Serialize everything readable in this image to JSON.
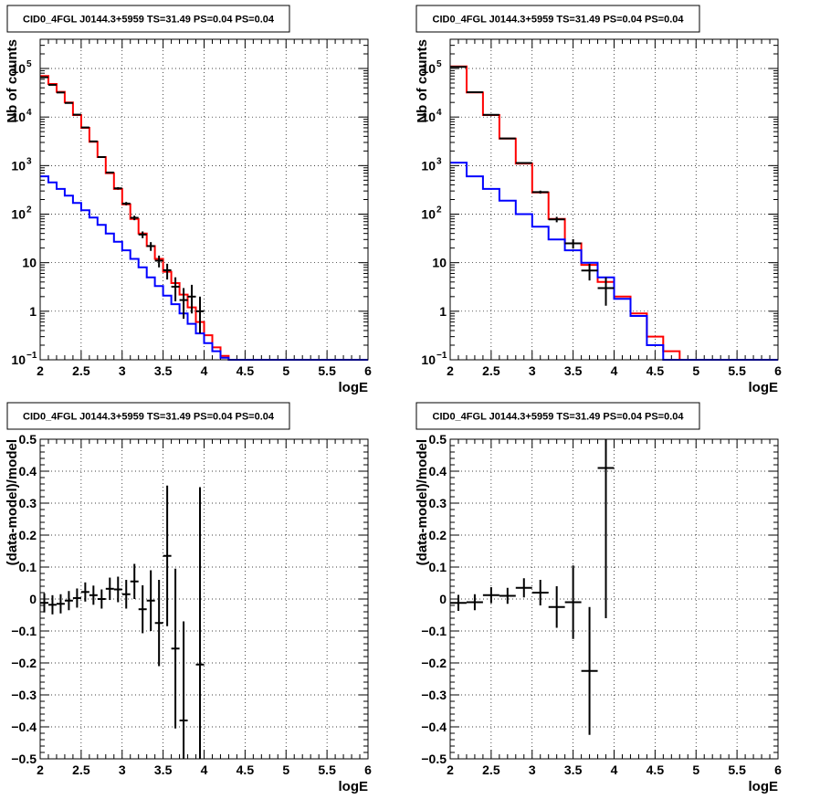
{
  "colors": {
    "data": "#000000",
    "model_total": "#ff0000",
    "model_component": "#0000ff",
    "grid": "#000000"
  },
  "chart_data": [
    {
      "type": "line",
      "title": "CID0_4FGL J0144.3+5959 TS=31.49 PS=0.04 PS=0.04",
      "xlabel": "logE",
      "ylabel": "Nb of counts",
      "xlim": [
        2,
        6
      ],
      "ylim": [
        0.1,
        400000
      ],
      "yscale": "log",
      "grid": true,
      "x_ticks": [
        "2",
        "2.5",
        "3",
        "3.5",
        "4",
        "4.5",
        "5",
        "5.5",
        "6"
      ],
      "y_ticks": [
        {
          "value": 0.1,
          "base": "10",
          "exp": "−1"
        },
        {
          "value": 1,
          "base": "1",
          "exp": ""
        },
        {
          "value": 10,
          "base": "10",
          "exp": ""
        },
        {
          "value": 100,
          "base": "10",
          "exp": "2"
        },
        {
          "value": 1000,
          "base": "10",
          "exp": "3"
        },
        {
          "value": 10000,
          "base": "10",
          "exp": "4"
        },
        {
          "value": 100000,
          "base": "10",
          "exp": "5"
        }
      ],
      "bin_edges": [
        2.0,
        2.1,
        2.2,
        2.3,
        2.4,
        2.5,
        2.6,
        2.7,
        2.8,
        2.9,
        3.0,
        3.1,
        3.2,
        3.3,
        3.4,
        3.5,
        3.6,
        3.7,
        3.8,
        3.9,
        4.0,
        4.1,
        4.2,
        4.3,
        4.4,
        4.5,
        4.6,
        4.7,
        4.8,
        4.9,
        5.0,
        5.1,
        5.2,
        5.3,
        5.4,
        5.5,
        5.6,
        5.7,
        5.8,
        5.9,
        6.0
      ],
      "series": [
        {
          "role": "model_total",
          "style": "step",
          "values": [
            70000,
            48000,
            33000,
            20000,
            11000,
            6000,
            3100,
            1500,
            700,
            330,
            160,
            80,
            40,
            22,
            12,
            6.5,
            3.8,
            2.2,
            1.2,
            0.6,
            0.32,
            0.18,
            0.12,
            0.1,
            0.1,
            0.1,
            0.1,
            0.1,
            0.1,
            0.1,
            0.1,
            0.1,
            0.1,
            0.1,
            0.1,
            0.1,
            0.1,
            0.1,
            0.1,
            0.1
          ]
        },
        {
          "role": "model_component",
          "style": "step",
          "values": [
            600,
            450,
            330,
            240,
            170,
            120,
            85,
            60,
            40,
            27,
            18,
            12,
            8,
            5,
            3.3,
            2.1,
            1.4,
            0.9,
            0.55,
            0.35,
            0.22,
            0.15,
            0.11,
            0.1,
            0.1,
            0.1,
            0.1,
            0.1,
            0.1,
            0.1,
            0.1,
            0.1,
            0.1,
            0.1,
            0.1,
            0.1,
            0.1,
            0.1,
            0.1,
            0.1
          ]
        },
        {
          "role": "data",
          "style": "points",
          "points": [
            {
              "x": 2.05,
              "y": 66000,
              "lo": 65500,
              "hi": 66500
            },
            {
              "x": 2.15,
              "y": 46000,
              "lo": 45500,
              "hi": 46500
            },
            {
              "x": 2.25,
              "y": 32000,
              "lo": 31600,
              "hi": 32400
            },
            {
              "x": 2.35,
              "y": 19500,
              "lo": 19200,
              "hi": 19800
            },
            {
              "x": 2.45,
              "y": 11200,
              "lo": 11000,
              "hi": 11400
            },
            {
              "x": 2.55,
              "y": 6100,
              "lo": 6000,
              "hi": 6200
            },
            {
              "x": 2.65,
              "y": 3150,
              "lo": 3090,
              "hi": 3210
            },
            {
              "x": 2.75,
              "y": 1500,
              "lo": 1460,
              "hi": 1540
            },
            {
              "x": 2.85,
              "y": 720,
              "lo": 690,
              "hi": 750
            },
            {
              "x": 2.95,
              "y": 340,
              "lo": 320,
              "hi": 360
            },
            {
              "x": 3.05,
              "y": 165,
              "lo": 152,
              "hi": 178
            },
            {
              "x": 3.15,
              "y": 84,
              "lo": 75,
              "hi": 93
            },
            {
              "x": 3.25,
              "y": 38,
              "lo": 32,
              "hi": 44
            },
            {
              "x": 3.35,
              "y": 22,
              "lo": 17.5,
              "hi": 26.5
            },
            {
              "x": 3.45,
              "y": 11,
              "lo": 8,
              "hi": 14
            },
            {
              "x": 3.55,
              "y": 7,
              "lo": 4.5,
              "hi": 9.5
            },
            {
              "x": 3.65,
              "y": 3.2,
              "lo": 1.6,
              "hi": 5
            },
            {
              "x": 3.75,
              "y": 1.7,
              "lo": 0.7,
              "hi": 3
            },
            {
              "x": 3.85,
              "y": 2,
              "lo": 0.9,
              "hi": 3.5
            },
            {
              "x": 3.95,
              "y": 1,
              "lo": 0.35,
              "hi": 2
            }
          ]
        }
      ]
    },
    {
      "type": "line",
      "title": "CID0_4FGL J0144.3+5959 TS=31.49 PS=0.04 PS=0.04",
      "xlabel": "logE",
      "ylabel": "Nb of counts",
      "xlim": [
        2,
        6
      ],
      "ylim": [
        0.1,
        400000
      ],
      "yscale": "log",
      "grid": true,
      "x_ticks": [
        "2",
        "2.5",
        "3",
        "3.5",
        "4",
        "4.5",
        "5",
        "5.5",
        "6"
      ],
      "y_ticks": [
        {
          "value": 0.1,
          "base": "10",
          "exp": "−1"
        },
        {
          "value": 1,
          "base": "1",
          "exp": ""
        },
        {
          "value": 10,
          "base": "10",
          "exp": ""
        },
        {
          "value": 100,
          "base": "10",
          "exp": "2"
        },
        {
          "value": 1000,
          "base": "10",
          "exp": "3"
        },
        {
          "value": 10000,
          "base": "10",
          "exp": "4"
        },
        {
          "value": 100000,
          "base": "10",
          "exp": "5"
        }
      ],
      "bin_edges": [
        2.0,
        2.2,
        2.4,
        2.6,
        2.8,
        3.0,
        3.2,
        3.4,
        3.6,
        3.8,
        4.0,
        4.2,
        4.4,
        4.6,
        4.8,
        5.0,
        5.2,
        5.4,
        5.6,
        5.8,
        6.0
      ],
      "series": [
        {
          "role": "model_total",
          "style": "step",
          "values": [
            110000,
            32000,
            11000,
            3600,
            1100,
            280,
            80,
            25,
            9,
            4,
            2,
            0.9,
            0.3,
            0.15,
            0.1,
            0.1,
            0.1,
            0.1,
            0.1,
            0.1
          ]
        },
        {
          "role": "model_component",
          "style": "step",
          "values": [
            1150,
            600,
            330,
            190,
            100,
            55,
            30,
            18,
            10,
            5,
            1.8,
            0.8,
            0.2,
            0.1,
            0.1,
            0.1,
            0.1,
            0.1,
            0.1,
            0.1
          ]
        },
        {
          "role": "data",
          "style": "points",
          "points": [
            {
              "x": 2.1,
              "y": 108000,
              "lo": 107000,
              "hi": 109000
            },
            {
              "x": 2.3,
              "y": 32500,
              "lo": 32100,
              "hi": 32900
            },
            {
              "x": 2.5,
              "y": 11100,
              "lo": 10900,
              "hi": 11300
            },
            {
              "x": 2.7,
              "y": 3620,
              "lo": 3550,
              "hi": 3690
            },
            {
              "x": 2.9,
              "y": 1130,
              "lo": 1090,
              "hi": 1170
            },
            {
              "x": 3.1,
              "y": 285,
              "lo": 265,
              "hi": 305
            },
            {
              "x": 3.3,
              "y": 78,
              "lo": 68,
              "hi": 88
            },
            {
              "x": 3.5,
              "y": 25,
              "lo": 19.5,
              "hi": 30.5
            },
            {
              "x": 3.7,
              "y": 6.9,
              "lo": 4.3,
              "hi": 9.5
            },
            {
              "x": 3.9,
              "y": 3,
              "lo": 1.3,
              "hi": 5
            }
          ]
        }
      ]
    },
    {
      "type": "scatter",
      "title": "CID0_4FGL J0144.3+5959 TS=31.49 PS=0.04 PS=0.04",
      "xlabel": "logE",
      "ylabel": "(data-model)/model",
      "xlim": [
        2,
        6
      ],
      "ylim": [
        -0.5,
        0.5
      ],
      "grid": true,
      "x_ticks": [
        "2",
        "2.5",
        "3",
        "3.5",
        "4",
        "4.5",
        "5",
        "5.5",
        "6"
      ],
      "y_ticks": [
        "−0.5",
        "−0.4",
        "−0.3",
        "−0.2",
        "−0.1",
        "0",
        "0.1",
        "0.2",
        "0.3",
        "0.4",
        "0.5"
      ],
      "points": [
        {
          "x": 2.05,
          "y": -0.012,
          "err": 0.03
        },
        {
          "x": 2.15,
          "y": -0.018,
          "err": 0.03
        },
        {
          "x": 2.25,
          "y": -0.015,
          "err": 0.03
        },
        {
          "x": 2.35,
          "y": -0.005,
          "err": 0.03
        },
        {
          "x": 2.45,
          "y": 0.003,
          "err": 0.03
        },
        {
          "x": 2.55,
          "y": 0.022,
          "err": 0.03
        },
        {
          "x": 2.65,
          "y": 0.012,
          "err": 0.03
        },
        {
          "x": 2.75,
          "y": 0.0,
          "err": 0.03
        },
        {
          "x": 2.85,
          "y": 0.032,
          "err": 0.035
        },
        {
          "x": 2.95,
          "y": 0.03,
          "err": 0.04
        },
        {
          "x": 3.05,
          "y": 0.015,
          "err": 0.045
        },
        {
          "x": 3.15,
          "y": 0.055,
          "err": 0.055
        },
        {
          "x": 3.25,
          "y": -0.032,
          "err": 0.075
        },
        {
          "x": 3.35,
          "y": -0.005,
          "err": 0.095
        },
        {
          "x": 3.45,
          "y": -0.075,
          "err": 0.135
        },
        {
          "x": 3.55,
          "y": 0.135,
          "err": 0.22
        },
        {
          "x": 3.65,
          "y": -0.155,
          "err": 0.25
        },
        {
          "x": 3.75,
          "y": -0.38,
          "err": 0.31
        },
        {
          "x": 3.95,
          "y": -0.205,
          "err": 0.555
        }
      ]
    },
    {
      "type": "scatter",
      "title": "CID0_4FGL J0144.3+5959 TS=31.49 PS=0.04 PS=0.04",
      "xlabel": "logE",
      "ylabel": "(data-model)/model",
      "xlim": [
        2,
        6
      ],
      "ylim": [
        -0.5,
        0.5
      ],
      "grid": true,
      "x_ticks": [
        "2",
        "2.5",
        "3",
        "3.5",
        "4",
        "4.5",
        "5",
        "5.5",
        "6"
      ],
      "y_ticks": [
        "−0.5",
        "−0.4",
        "−0.3",
        "−0.2",
        "−0.1",
        "0",
        "0.1",
        "0.2",
        "0.3",
        "0.4",
        "0.5"
      ],
      "points": [
        {
          "x": 2.1,
          "y": -0.012,
          "err": 0.025
        },
        {
          "x": 2.3,
          "y": -0.01,
          "err": 0.025
        },
        {
          "x": 2.5,
          "y": 0.012,
          "err": 0.025
        },
        {
          "x": 2.7,
          "y": 0.01,
          "err": 0.025
        },
        {
          "x": 2.9,
          "y": 0.035,
          "err": 0.03
        },
        {
          "x": 3.1,
          "y": 0.02,
          "err": 0.04
        },
        {
          "x": 3.3,
          "y": -0.025,
          "err": 0.065
        },
        {
          "x": 3.5,
          "y": -0.01,
          "err": 0.115
        },
        {
          "x": 3.7,
          "y": -0.225,
          "err": 0.2
        },
        {
          "x": 3.9,
          "y": 0.41,
          "err": 0.47
        }
      ]
    }
  ]
}
